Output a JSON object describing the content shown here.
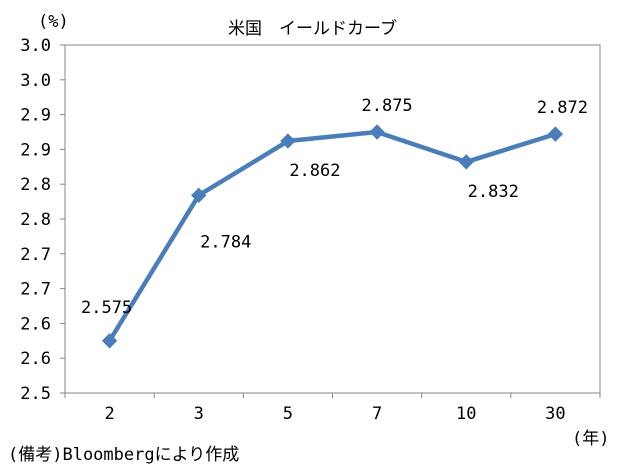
{
  "chart_data": {
    "type": "line",
    "title": "米国　イールドカーブ",
    "y_unit": "(%)",
    "x_unit": "(年)",
    "note": "(備考)Bloombergにより作成",
    "categories": [
      "2",
      "3",
      "5",
      "7",
      "10",
      "30"
    ],
    "series": [
      {
        "values": [
          2.575,
          2.784,
          2.862,
          2.875,
          2.832,
          2.872
        ]
      }
    ],
    "data_labels": [
      "2.575",
      "2.784",
      "2.862",
      "2.875",
      "2.832",
      "2.872"
    ],
    "y_tick_labels": [
      "2.5",
      "2.6",
      "2.6",
      "2.7",
      "2.7",
      "2.8",
      "2.8",
      "2.9",
      "2.9",
      "3.0",
      "3.0"
    ],
    "ylim": [
      2.5,
      3.0
    ],
    "grid": false,
    "legend": "none",
    "line_color": "#4A7EBB",
    "marker": "diamond"
  }
}
